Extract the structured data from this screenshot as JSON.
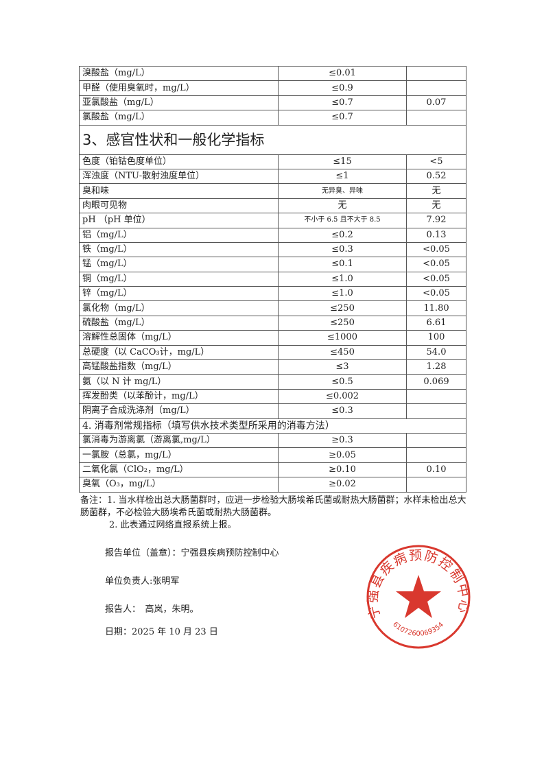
{
  "rows_top": [
    [
      "溴酸盐（mg/L）",
      "≤0.01",
      ""
    ],
    [
      "甲醛（使用臭氧时，mg/L）",
      "≤0.9",
      ""
    ],
    [
      "亚氯酸盐（mg/L）",
      "≤0.7",
      "0.07"
    ],
    [
      "氯酸盐（mg/L）",
      "≤0.7",
      ""
    ]
  ],
  "section3": "3、感官性状和一般化学指标",
  "rows_s3": [
    [
      "色度（铂钴色度单位）",
      "≤15",
      "<5"
    ],
    [
      "浑浊度（NTU-散射浊度单位）",
      "≤1",
      "0.52"
    ],
    [
      "臭和味",
      "无异臭、异味",
      "无"
    ],
    [
      "肉眼可见物",
      "无",
      "无"
    ],
    [
      "pH （pH 单位）",
      "不小于 6.5 且不大于 8.5",
      "7.92"
    ],
    [
      "铝（mg/L）",
      "≤0.2",
      "0.13"
    ],
    [
      "铁（mg/L）",
      "≤0.3",
      "<0.05"
    ],
    [
      "锰（mg/L）",
      "≤0.1",
      "<0.05"
    ],
    [
      "铜（mg/L）",
      "≤1.0",
      "<0.05"
    ],
    [
      "锌（mg/L）",
      "≤1.0",
      "<0.05"
    ],
    [
      "氯化物（mg/L）",
      "≤250",
      "11.80"
    ],
    [
      "硫酸盐（mg/L）",
      "≤250",
      "6.61"
    ],
    [
      "溶解性总固体（mg/L）",
      "≤1000",
      "100"
    ],
    [
      "总硬度（以 CaCO₃计，mg/L）",
      "≤450",
      "54.0"
    ],
    [
      "高锰酸盐指数（mg/L）",
      "≤3",
      "1.28"
    ],
    [
      "氨（以 N 计 mg/L）",
      "≤0.5",
      "0.069"
    ],
    [
      "挥发酚类（以苯酚计，mg/L）",
      "≤0.002",
      ""
    ],
    [
      "阴离子合成洗涤剂（mg/L）",
      "≤0.3",
      ""
    ]
  ],
  "section4": "4. 消毒剂常规指标（填写供水技术类型所采用的消毒方法）",
  "rows_s4": [
    [
      "氯消毒为游离氯（游离氯,mg/L）",
      "≥0.3",
      ""
    ],
    [
      "一氯胺（总氯，mg/L）",
      "≥0.05",
      ""
    ],
    [
      "二氧化氯（ClO₂，mg/L）",
      "≥0.10",
      "0.10"
    ],
    [
      "臭氧（O₃，mg/L）",
      "≥0.02",
      ""
    ]
  ],
  "notes": {
    "n1": "备注：1. 当水样检出总大肠菌群时，应进一步检验大肠埃希氏菌或耐热大肠菌群；水样未检出总大肠菌群，不必检验大肠埃希氏菌或耐热大肠菌群。",
    "n2": "2. 此表通过网络直报系统上报。"
  },
  "report_unit": "报告单位（盖章）：宁强县疾病预防控制中心",
  "responsible": "单位负责人:张明军",
  "reporter": "报告人：　高岚，朱明。",
  "date": "日期：2025 年 10 月 23 日",
  "stamp": {
    "name": "宁强县疾病预防控制中心",
    "code": "6107260069354",
    "color": "#d9382e"
  }
}
